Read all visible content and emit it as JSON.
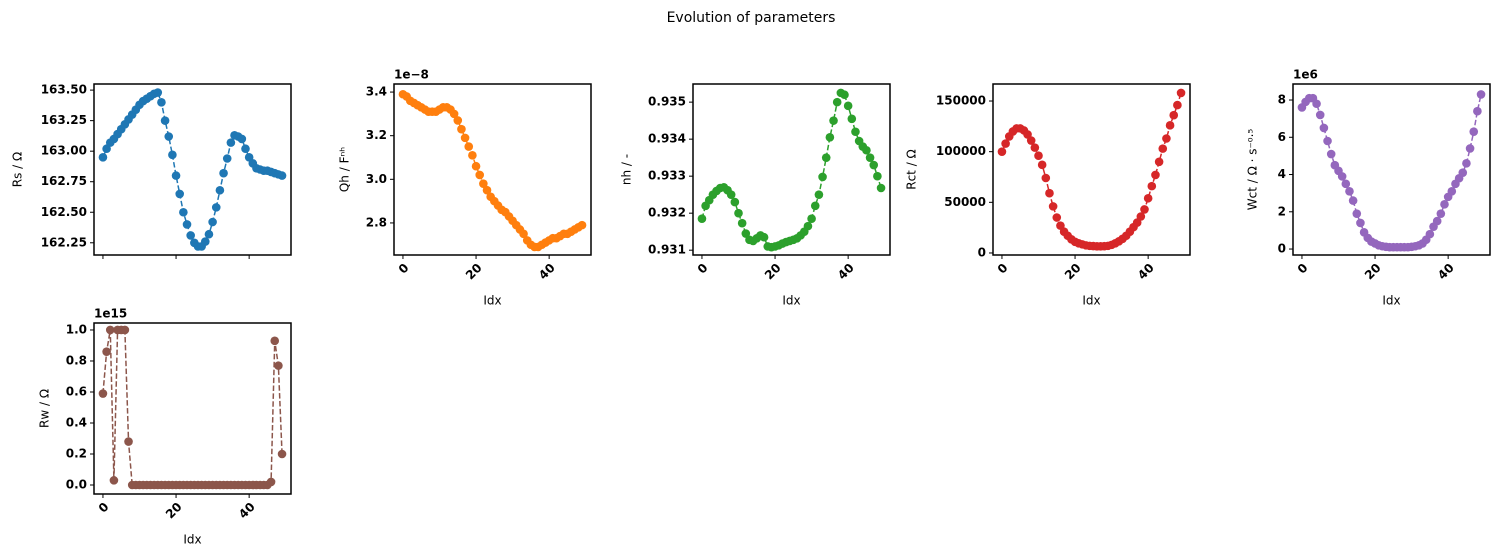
{
  "title": "Evolution of parameters",
  "chart_data": [
    {
      "type": "line",
      "ylabel": "Rs / Ω",
      "color": "#1f77b4",
      "linestyle": "dashed",
      "show_xticklabels": false,
      "x": [
        0,
        1,
        2,
        3,
        4,
        5,
        6,
        7,
        8,
        9,
        10,
        11,
        12,
        13,
        14,
        15,
        16,
        17,
        18,
        19,
        20,
        21,
        22,
        23,
        24,
        25,
        26,
        27,
        28,
        29,
        30,
        31,
        32,
        33,
        34,
        35,
        36,
        37,
        38,
        39,
        40,
        41,
        42,
        43,
        44,
        45,
        46,
        47,
        48,
        49
      ],
      "values": [
        162.95,
        163.02,
        163.07,
        163.1,
        163.14,
        163.18,
        163.22,
        163.26,
        163.3,
        163.34,
        163.38,
        163.41,
        163.43,
        163.45,
        163.47,
        163.48,
        163.4,
        163.25,
        163.12,
        162.97,
        162.8,
        162.65,
        162.5,
        162.4,
        162.31,
        162.25,
        162.22,
        162.22,
        162.26,
        162.32,
        162.42,
        162.54,
        162.68,
        162.82,
        162.94,
        163.07,
        163.13,
        163.12,
        163.1,
        163.02,
        162.95,
        162.9,
        162.86,
        162.85,
        162.84,
        162.84,
        162.83,
        162.82,
        162.81,
        162.8
      ],
      "xlim": [
        -2.45,
        51.45
      ],
      "xticks": [
        0,
        20,
        40
      ],
      "ylim": [
        162.15,
        163.55
      ],
      "yticks": [
        162.25,
        {
          "value": 162.5,
          "label": "162.50"
        },
        162.75,
        {
          "value": 163,
          "label": "163.00"
        },
        163.25,
        {
          "value": 163.5,
          "label": "163.50"
        }
      ]
    },
    {
      "type": "line",
      "ylabel": "Qh / Fⁿʰ",
      "xlabel": "Idx",
      "offset_label": "1e−8",
      "color": "#ff7f0e",
      "linestyle": "dashed",
      "show_xticklabels": true,
      "x": [
        0,
        1,
        2,
        3,
        4,
        5,
        6,
        7,
        8,
        9,
        10,
        11,
        12,
        13,
        14,
        15,
        16,
        17,
        18,
        19,
        20,
        21,
        22,
        23,
        24,
        25,
        26,
        27,
        28,
        29,
        30,
        31,
        32,
        33,
        34,
        35,
        36,
        37,
        38,
        39,
        40,
        41,
        42,
        43,
        44,
        45,
        46,
        47,
        48,
        49
      ],
      "values": [
        3.39,
        3.38,
        3.36,
        3.35,
        3.34,
        3.33,
        3.32,
        3.31,
        3.31,
        3.31,
        3.32,
        3.33,
        3.33,
        3.32,
        3.3,
        3.27,
        3.23,
        3.19,
        3.15,
        3.11,
        3.06,
        3.02,
        2.98,
        2.95,
        2.92,
        2.9,
        2.88,
        2.86,
        2.85,
        2.83,
        2.81,
        2.79,
        2.77,
        2.75,
        2.72,
        2.7,
        2.69,
        2.69,
        2.7,
        2.71,
        2.72,
        2.73,
        2.73,
        2.74,
        2.75,
        2.75,
        2.76,
        2.77,
        2.78,
        2.79
      ],
      "xlim": [
        -2.45,
        51.45
      ],
      "xticks": [
        0,
        20,
        40
      ],
      "ylim": [
        2.653,
        3.437
      ],
      "yticks": [
        2.8,
        {
          "value": 3,
          "label": "3.0"
        },
        3.2,
        3.4
      ]
    },
    {
      "type": "line",
      "ylabel": "nh / -",
      "xlabel": "Idx",
      "color": "#2ca02c",
      "linestyle": "dashed",
      "show_xticklabels": true,
      "x": [
        0,
        1,
        2,
        3,
        4,
        5,
        6,
        7,
        8,
        9,
        10,
        11,
        12,
        13,
        14,
        15,
        16,
        17,
        18,
        19,
        20,
        21,
        22,
        23,
        24,
        25,
        26,
        27,
        28,
        29,
        30,
        31,
        32,
        33,
        34,
        35,
        36,
        37,
        38,
        39,
        40,
        41,
        42,
        43,
        44,
        45,
        46,
        47,
        48,
        49
      ],
      "values": [
        0.93185,
        0.9322,
        0.93235,
        0.9325,
        0.9326,
        0.93268,
        0.9327,
        0.93262,
        0.9325,
        0.9323,
        0.932,
        0.93173,
        0.93145,
        0.93128,
        0.93125,
        0.93132,
        0.9314,
        0.93135,
        0.9311,
        0.93108,
        0.9311,
        0.93113,
        0.93118,
        0.93122,
        0.93125,
        0.93128,
        0.93132,
        0.9314,
        0.9315,
        0.93165,
        0.93185,
        0.9322,
        0.9325,
        0.93298,
        0.9335,
        0.93405,
        0.9345,
        0.935,
        0.93525,
        0.9352,
        0.9349,
        0.93455,
        0.9342,
        0.93395,
        0.9338,
        0.9337,
        0.9335,
        0.9333,
        0.933,
        0.93268
      ],
      "xlim": [
        -2.45,
        51.45
      ],
      "xticks": [
        0,
        20,
        40
      ],
      "ylim": [
        0.93087,
        0.93549
      ],
      "yticks": [
        0.931,
        0.932,
        0.933,
        0.934,
        0.935
      ]
    },
    {
      "type": "line",
      "ylabel": "Rct / Ω",
      "xlabel": "Idx",
      "color": "#d62728",
      "linestyle": "dashed",
      "show_xticklabels": true,
      "x": [
        0,
        1,
        2,
        3,
        4,
        5,
        6,
        7,
        8,
        9,
        10,
        11,
        12,
        13,
        14,
        15,
        16,
        17,
        18,
        19,
        20,
        21,
        22,
        23,
        24,
        25,
        26,
        27,
        28,
        29,
        30,
        31,
        32,
        33,
        34,
        35,
        36,
        37,
        38,
        39,
        40,
        41,
        42,
        43,
        44,
        45,
        46,
        47,
        48,
        49
      ],
      "values": [
        100000,
        108000,
        115000,
        120000,
        123000,
        123000,
        121000,
        117000,
        111000,
        104000,
        96000,
        87000,
        74000,
        59000,
        46000,
        35000,
        27000,
        21000,
        17000,
        13500,
        11000,
        9500,
        8500,
        7500,
        7000,
        6800,
        6600,
        6600,
        6700,
        7000,
        8000,
        9500,
        11500,
        14000,
        17000,
        21000,
        25500,
        30000,
        36000,
        43000,
        54000,
        66000,
        77000,
        90000,
        103000,
        113000,
        126000,
        136000,
        146000,
        158000
      ],
      "xlim": [
        -2.45,
        51.45
      ],
      "xticks": [
        0,
        20,
        40
      ],
      "ylim": [
        -2000,
        166800
      ],
      "yticks": [
        0,
        50000,
        100000,
        150000
      ]
    },
    {
      "type": "line",
      "ylabel": "Wct / Ω ⋅ s⁻⁰·⁵",
      "xlabel": "Idx",
      "offset_label": "1e6",
      "color": "#9467bd",
      "linestyle": "dashed",
      "show_xticklabels": true,
      "x": [
        0,
        1,
        2,
        3,
        4,
        5,
        6,
        7,
        8,
        9,
        10,
        11,
        12,
        13,
        14,
        15,
        16,
        17,
        18,
        19,
        20,
        21,
        22,
        23,
        24,
        25,
        26,
        27,
        28,
        29,
        30,
        31,
        32,
        33,
        34,
        35,
        36,
        37,
        38,
        39,
        40,
        41,
        42,
        43,
        44,
        45,
        46,
        47,
        48,
        49
      ],
      "values": [
        7.6,
        7.9,
        8.1,
        8.1,
        7.8,
        7.2,
        6.5,
        5.8,
        5.1,
        4.5,
        4.2,
        3.9,
        3.5,
        3.1,
        2.6,
        1.9,
        1.4,
        0.9,
        0.6,
        0.4,
        0.3,
        0.2,
        0.15,
        0.12,
        0.1,
        0.1,
        0.1,
        0.1,
        0.1,
        0.1,
        0.12,
        0.15,
        0.2,
        0.3,
        0.5,
        0.8,
        1.2,
        1.5,
        1.9,
        2.4,
        2.8,
        3.1,
        3.5,
        3.8,
        4.1,
        4.6,
        5.4,
        6.3,
        7.4,
        8.3
      ],
      "xlim": [
        -2.45,
        51.45
      ],
      "xticks": [
        0,
        20,
        40
      ],
      "ylim": [
        -0.32,
        8.86
      ],
      "yticks": [
        0,
        2,
        4,
        6,
        8
      ]
    },
    {
      "type": "line",
      "ylabel": "Rw / Ω",
      "xlabel": "Idx",
      "offset_label": "1e15",
      "color": "#8c564b",
      "linestyle": "dashed",
      "show_xticklabels": true,
      "x": [
        0,
        1,
        2,
        3,
        4,
        5,
        6,
        7,
        8,
        9,
        10,
        11,
        12,
        13,
        14,
        15,
        16,
        17,
        18,
        19,
        20,
        21,
        22,
        23,
        24,
        25,
        26,
        27,
        28,
        29,
        30,
        31,
        32,
        33,
        34,
        35,
        36,
        37,
        38,
        39,
        40,
        41,
        42,
        43,
        44,
        45,
        46,
        47,
        48,
        49
      ],
      "values": [
        0.59,
        0.86,
        1.0,
        0.03,
        1.0,
        1.0,
        1.0,
        0.28,
        0,
        0,
        0,
        0,
        0,
        0,
        0,
        0,
        0,
        0,
        0,
        0,
        0,
        0,
        0,
        0,
        0,
        0,
        0,
        0,
        0,
        0,
        0,
        0,
        0,
        0,
        0,
        0,
        0,
        0,
        0,
        0,
        0,
        0,
        0,
        0,
        0,
        0,
        0.02,
        0.93,
        0.77,
        0.2
      ],
      "xlim": [
        -2.45,
        51.45
      ],
      "xticks": [
        0,
        20,
        40
      ],
      "ylim": [
        -0.058,
        1.045
      ],
      "yticks": [
        {
          "value": 0,
          "label": "0.0"
        },
        0.2,
        0.4,
        0.6,
        0.8,
        {
          "value": 1,
          "label": "1.0"
        }
      ]
    }
  ]
}
